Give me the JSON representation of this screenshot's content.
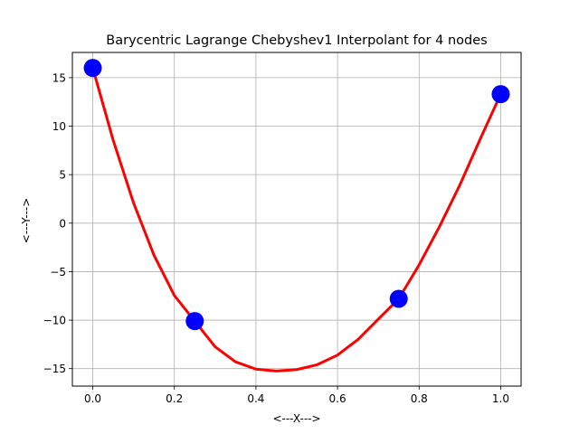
{
  "chart_data": {
    "type": "line",
    "title": "Barycentric Lagrange Chebyshev1 Interpolant for 4 nodes",
    "xlabel": "<---X--->",
    "ylabel": "<---Y--->",
    "xlim": [
      -0.05,
      1.05
    ],
    "ylim": [
      -16.8,
      17.6
    ],
    "xticks": [
      0.0,
      0.2,
      0.4,
      0.6,
      0.8,
      1.0
    ],
    "xtick_labels": [
      "0.0",
      "0.2",
      "0.4",
      "0.6",
      "0.8",
      "1.0"
    ],
    "yticks": [
      -15,
      -10,
      -5,
      0,
      5,
      10,
      15
    ],
    "ytick_labels": [
      "−15",
      "−10",
      "−5",
      "0",
      "5",
      "10",
      "15"
    ],
    "grid": true,
    "series": [
      {
        "kind": "line",
        "color": "#ff0000",
        "x": [
          0.0,
          0.05,
          0.1,
          0.15,
          0.2,
          0.25,
          0.3,
          0.35,
          0.4,
          0.45,
          0.5,
          0.55,
          0.6,
          0.65,
          0.7,
          0.75,
          0.8,
          0.85,
          0.9,
          0.95,
          1.0
        ],
        "y": [
          16.0,
          8.55,
          2.08,
          -3.3,
          -7.46,
          -10.1,
          -12.75,
          -14.3,
          -15.05,
          -15.25,
          -15.1,
          -14.6,
          -13.6,
          -12.0,
          -9.9,
          -7.8,
          -4.3,
          -0.35,
          3.95,
          8.7,
          13.3
        ]
      },
      {
        "kind": "scatter",
        "color": "#0000ff",
        "x": [
          0.0,
          0.25,
          0.75,
          1.0
        ],
        "y": [
          16.0,
          -10.1,
          -7.8,
          13.3
        ]
      }
    ]
  }
}
